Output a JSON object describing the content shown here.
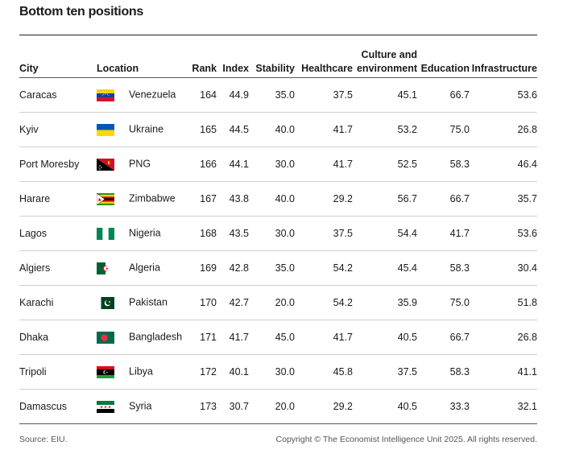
{
  "title": "Bottom ten positions",
  "columns": {
    "city": "City",
    "location": "Location",
    "rank": "Rank",
    "index": "Index",
    "stability": "Stability",
    "healthcare": "Healthcare",
    "culture_line1": "Culture and",
    "culture_line2": "environment",
    "education": "Education",
    "infrastructure": "Infrastructure"
  },
  "rows": [
    {
      "city": "Caracas",
      "location": "Venezuela",
      "flag": "venezuela-flag-icon",
      "rank": "164",
      "index": "44.9",
      "stability": "35.0",
      "healthcare": "37.5",
      "culture": "45.1",
      "education": "66.7",
      "infrastructure": "53.6"
    },
    {
      "city": "Kyiv",
      "location": "Ukraine",
      "flag": "ukraine-flag-icon",
      "rank": "165",
      "index": "44.5",
      "stability": "40.0",
      "healthcare": "41.7",
      "culture": "53.2",
      "education": "75.0",
      "infrastructure": "26.8"
    },
    {
      "city": "Port Moresby",
      "location": "PNG",
      "flag": "png-flag-icon",
      "rank": "166",
      "index": "44.1",
      "stability": "30.0",
      "healthcare": "41.7",
      "culture": "52.5",
      "education": "58.3",
      "infrastructure": "46.4"
    },
    {
      "city": "Harare",
      "location": "Zimbabwe",
      "flag": "zimbabwe-flag-icon",
      "rank": "167",
      "index": "43.8",
      "stability": "40.0",
      "healthcare": "29.2",
      "culture": "56.7",
      "education": "66.7",
      "infrastructure": "35.7"
    },
    {
      "city": "Lagos",
      "location": "Nigeria",
      "flag": "nigeria-flag-icon",
      "rank": "168",
      "index": "43.5",
      "stability": "30.0",
      "healthcare": "37.5",
      "culture": "54.4",
      "education": "41.7",
      "infrastructure": "53.6"
    },
    {
      "city": "Algiers",
      "location": "Algeria",
      "flag": "algeria-flag-icon",
      "rank": "169",
      "index": "42.8",
      "stability": "35.0",
      "healthcare": "54.2",
      "culture": "45.4",
      "education": "58.3",
      "infrastructure": "30.4"
    },
    {
      "city": "Karachi",
      "location": "Pakistan",
      "flag": "pakistan-flag-icon",
      "rank": "170",
      "index": "42.7",
      "stability": "20.0",
      "healthcare": "54.2",
      "culture": "35.9",
      "education": "75.0",
      "infrastructure": "51.8"
    },
    {
      "city": "Dhaka",
      "location": "Bangladesh",
      "flag": "bangladesh-flag-icon",
      "rank": "171",
      "index": "41.7",
      "stability": "45.0",
      "healthcare": "41.7",
      "culture": "40.5",
      "education": "66.7",
      "infrastructure": "26.8"
    },
    {
      "city": "Tripoli",
      "location": "Libya",
      "flag": "libya-flag-icon",
      "rank": "172",
      "index": "40.1",
      "stability": "30.0",
      "healthcare": "45.8",
      "culture": "37.5",
      "education": "58.3",
      "infrastructure": "41.1"
    },
    {
      "city": "Damascus",
      "location": "Syria",
      "flag": "syria-flag-icon",
      "rank": "173",
      "index": "30.7",
      "stability": "20.0",
      "healthcare": "29.2",
      "culture": "40.5",
      "education": "33.3",
      "infrastructure": "32.1"
    }
  ],
  "footer": {
    "source": "Source: EIU.",
    "copyright": "Copyright © The Economist Intelligence Unit 2025. All rights reserved."
  }
}
